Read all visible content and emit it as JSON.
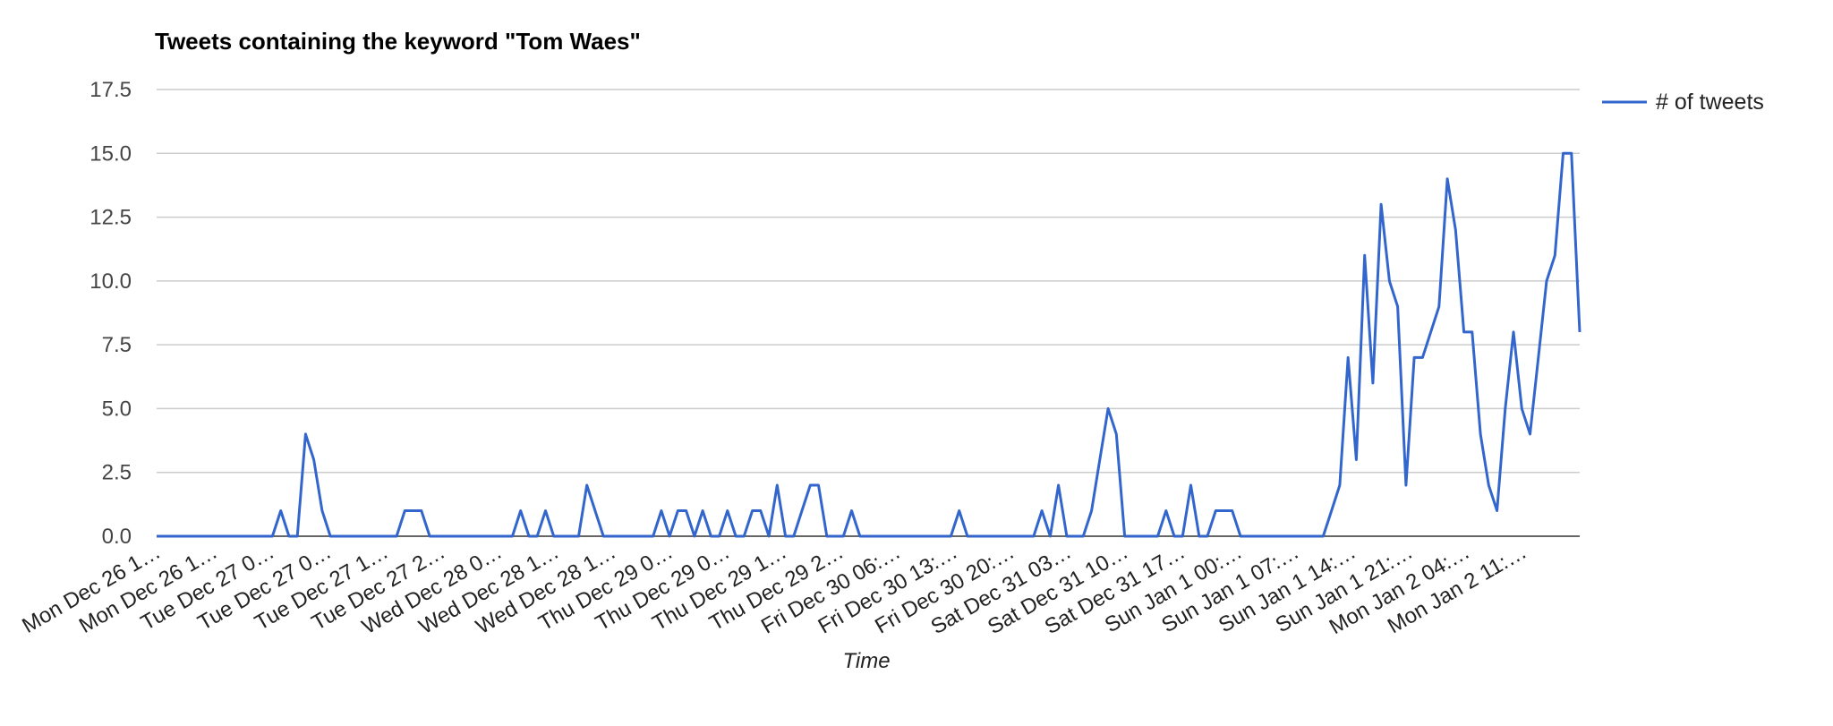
{
  "chart_data": {
    "type": "line",
    "title": "Tweets containing the keyword \"Tom Waes\"",
    "xlabel": "Time",
    "ylabel": "",
    "ylim": [
      0,
      17.5
    ],
    "y_ticks": [
      "0.0",
      "2.5",
      "5.0",
      "7.5",
      "10.0",
      "12.5",
      "15.0",
      "17.5"
    ],
    "x_tick_labels": [
      "Mon Dec 26 1…",
      "Mon Dec 26 1…",
      "Tue Dec 27 0…",
      "Tue Dec 27 0…",
      "Tue Dec 27 1…",
      "Tue Dec 27 2…",
      "Wed Dec 28 0…",
      "Wed Dec 28 1…",
      "Wed Dec 28 1…",
      "Thu Dec 29 0…",
      "Thu Dec 29 0…",
      "Thu Dec 29 1…",
      "Thu Dec 29 2…",
      "Fri Dec 30 06:…",
      "Fri Dec 30 13:…",
      "Fri Dec 30 20:…",
      "Sat Dec 31 03…",
      "Sat Dec 31 10…",
      "Sat Dec 31 17…",
      "Sun Jan 1 00:…",
      "Sun Jan 1 07:…",
      "Sun Jan 1 14:…",
      "Sun Jan 1 21:…",
      "Mon Jan 2 04:…",
      "Mon Jan 2 11:…"
    ],
    "grid": true,
    "legend_position": "right",
    "series": [
      {
        "name": "# of tweets",
        "color": "#3366cc",
        "values": [
          0,
          0,
          0,
          0,
          0,
          0,
          0,
          0,
          0,
          0,
          0,
          0,
          0,
          0,
          0,
          1,
          0,
          0,
          4,
          3,
          1,
          0,
          0,
          0,
          0,
          0,
          0,
          0,
          0,
          0,
          1,
          1,
          1,
          0,
          0,
          0,
          0,
          0,
          0,
          0,
          0,
          0,
          0,
          0,
          1,
          0,
          0,
          1,
          0,
          0,
          0,
          0,
          2,
          1,
          0,
          0,
          0,
          0,
          0,
          0,
          0,
          1,
          0,
          1,
          1,
          0,
          1,
          0,
          0,
          1,
          0,
          0,
          1,
          1,
          0,
          2,
          0,
          0,
          1,
          2,
          2,
          0,
          0,
          0,
          1,
          0,
          0,
          0,
          0,
          0,
          0,
          0,
          0,
          0,
          0,
          0,
          0,
          1,
          0,
          0,
          0,
          0,
          0,
          0,
          0,
          0,
          0,
          1,
          0,
          2,
          0,
          0,
          0,
          1,
          3,
          5,
          4,
          0,
          0,
          0,
          0,
          0,
          1,
          0,
          0,
          2,
          0,
          0,
          1,
          1,
          1,
          0,
          0,
          0,
          0,
          0,
          0,
          0,
          0,
          0,
          0,
          0,
          1,
          2,
          7,
          3,
          11,
          6,
          13,
          10,
          9,
          2,
          7,
          7,
          8,
          9,
          14,
          12,
          8,
          8,
          4,
          2,
          1,
          5,
          8,
          5,
          4,
          7,
          10,
          11,
          15,
          15,
          8
        ]
      }
    ]
  }
}
